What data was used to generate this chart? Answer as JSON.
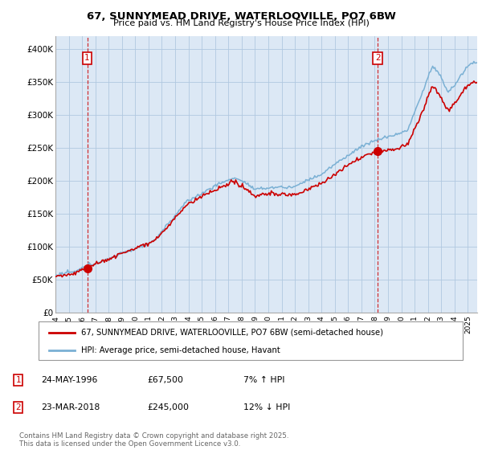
{
  "title": "67, SUNNYMEAD DRIVE, WATERLOOVILLE, PO7 6BW",
  "subtitle": "Price paid vs. HM Land Registry's House Price Index (HPI)",
  "legend_line1": "67, SUNNYMEAD DRIVE, WATERLOOVILLE, PO7 6BW (semi-detached house)",
  "legend_line2": "HPI: Average price, semi-detached house, Havant",
  "sale1_date_str": "24-MAY-1996",
  "sale1_price_str": "£67,500",
  "sale1_hpi_str": "7% ↑ HPI",
  "sale2_date_str": "23-MAR-2018",
  "sale2_price_str": "£245,000",
  "sale2_hpi_str": "12% ↓ HPI",
  "copyright": "Contains HM Land Registry data © Crown copyright and database right 2025.\nThis data is licensed under the Open Government Licence v3.0.",
  "sale_color": "#cc0000",
  "hpi_color": "#7ab0d4",
  "background_color": "#ffffff",
  "plot_bg": "#dce8f5",
  "ylim": [
    0,
    420000
  ],
  "yticks": [
    0,
    50000,
    100000,
    150000,
    200000,
    250000,
    300000,
    350000,
    400000
  ],
  "ytick_labels": [
    "£0",
    "£50K",
    "£100K",
    "£150K",
    "£200K",
    "£250K",
    "£300K",
    "£350K",
    "£400K"
  ],
  "sale1_x": 1996.39,
  "sale1_y": 67500,
  "sale2_x": 2018.23,
  "sale2_y": 245000,
  "xmin": 1994.0,
  "xmax": 2025.7
}
